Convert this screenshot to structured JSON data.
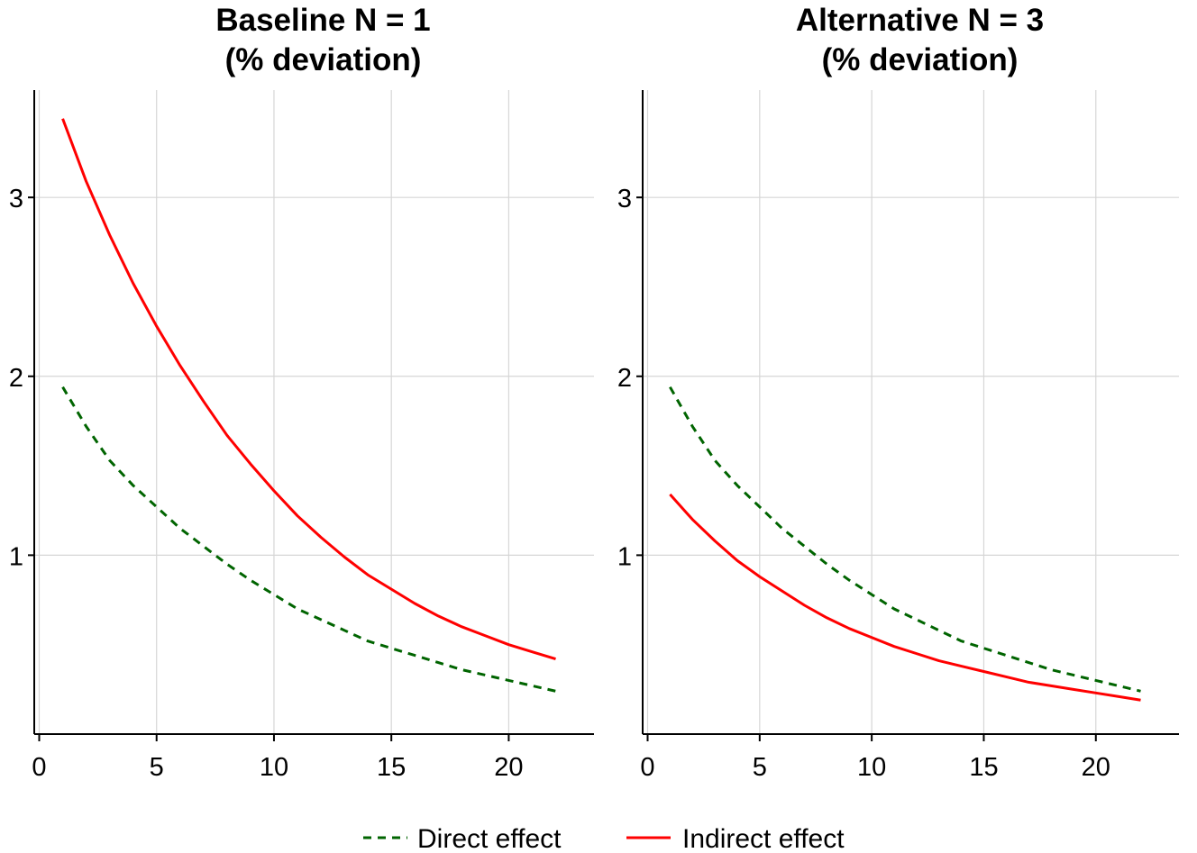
{
  "chart_data": [
    {
      "type": "line",
      "title_lines": [
        "Baseline N = 1",
        "(% deviation)"
      ],
      "xlabel": "",
      "ylabel": "",
      "xlim": [
        0,
        23
      ],
      "ylim": [
        0.0,
        3.6
      ],
      "x_ticks": [
        0,
        5,
        10,
        15,
        20
      ],
      "x_tick_labels": [
        "0",
        "5",
        "10",
        "15",
        "20"
      ],
      "y_ticks": [
        1,
        2,
        3
      ],
      "y_tick_labels": [
        "1",
        "2",
        "3"
      ],
      "grid": true,
      "x": [
        1,
        2,
        3,
        4,
        5,
        6,
        7,
        8,
        9,
        10,
        11,
        12,
        13,
        14,
        15,
        16,
        17,
        18,
        19,
        20,
        21,
        22
      ],
      "series": [
        {
          "name": "Direct effect",
          "style": "dashed",
          "color": "#006400",
          "values": [
            1.94,
            1.72,
            1.53,
            1.39,
            1.27,
            1.15,
            1.05,
            0.95,
            0.86,
            0.78,
            0.7,
            0.64,
            0.58,
            0.52,
            0.48,
            0.44,
            0.4,
            0.36,
            0.33,
            0.3,
            0.27,
            0.24
          ]
        },
        {
          "name": "Indirect effect",
          "style": "solid",
          "color": "#ff0000",
          "values": [
            3.44,
            3.09,
            2.79,
            2.52,
            2.28,
            2.06,
            1.86,
            1.67,
            1.51,
            1.36,
            1.22,
            1.1,
            0.99,
            0.89,
            0.81,
            0.73,
            0.66,
            0.6,
            0.55,
            0.5,
            0.46,
            0.42
          ]
        }
      ]
    },
    {
      "type": "line",
      "title_lines": [
        "Alternative N = 3",
        "(% deviation)"
      ],
      "xlabel": "",
      "ylabel": "",
      "xlim": [
        0,
        23
      ],
      "ylim": [
        0.0,
        3.6
      ],
      "x_ticks": [
        0,
        5,
        10,
        15,
        20
      ],
      "x_tick_labels": [
        "0",
        "5",
        "10",
        "15",
        "20"
      ],
      "y_ticks": [
        1,
        2,
        3
      ],
      "y_tick_labels": [
        "1",
        "2",
        "3"
      ],
      "grid": true,
      "x": [
        1,
        2,
        3,
        4,
        5,
        6,
        7,
        8,
        9,
        10,
        11,
        12,
        13,
        14,
        15,
        16,
        17,
        18,
        19,
        20,
        21,
        22
      ],
      "series": [
        {
          "name": "Direct effect",
          "style": "dashed",
          "color": "#006400",
          "values": [
            1.94,
            1.72,
            1.53,
            1.39,
            1.27,
            1.15,
            1.05,
            0.95,
            0.86,
            0.78,
            0.7,
            0.64,
            0.58,
            0.52,
            0.48,
            0.44,
            0.4,
            0.36,
            0.33,
            0.3,
            0.27,
            0.24
          ]
        },
        {
          "name": "Indirect effect",
          "style": "solid",
          "color": "#ff0000",
          "values": [
            1.34,
            1.2,
            1.08,
            0.97,
            0.88,
            0.8,
            0.72,
            0.65,
            0.59,
            0.54,
            0.49,
            0.45,
            0.41,
            0.38,
            0.35,
            0.32,
            0.29,
            0.27,
            0.25,
            0.23,
            0.21,
            0.19
          ]
        }
      ]
    }
  ],
  "legend": {
    "placement": "bottom",
    "items": [
      {
        "label": "Direct effect",
        "style": "dashed",
        "color": "#006400"
      },
      {
        "label": "Indirect effect",
        "style": "solid",
        "color": "#ff0000"
      }
    ]
  },
  "colors": {
    "grid": "#d6d6d6",
    "axis": "#000000"
  }
}
